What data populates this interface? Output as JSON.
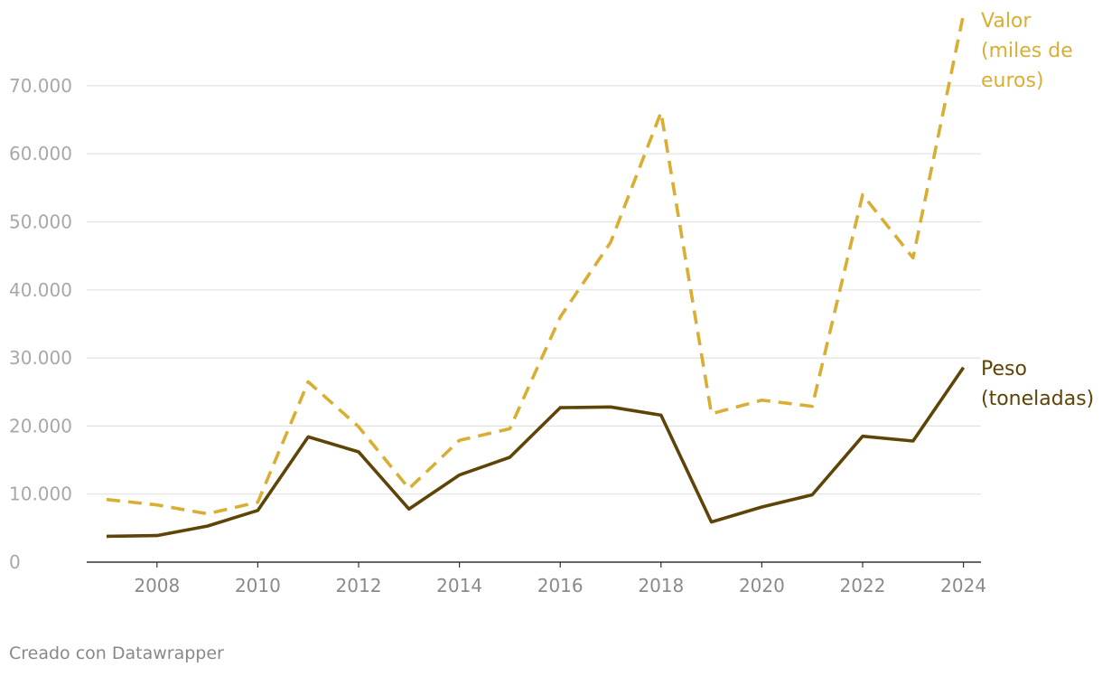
{
  "chart_data": {
    "type": "line",
    "x": [
      2007,
      2008,
      2009,
      2010,
      2011,
      2012,
      2013,
      2014,
      2015,
      2016,
      2017,
      2018,
      2019,
      2020,
      2021,
      2022,
      2023,
      2024
    ],
    "x_ticks": [
      2008,
      2010,
      2012,
      2014,
      2016,
      2018,
      2020,
      2022,
      2024
    ],
    "x_tick_labels": [
      "2008",
      "2010",
      "2012",
      "2014",
      "2016",
      "2018",
      "2020",
      "2022",
      "2024"
    ],
    "y_ticks": [
      0,
      10000,
      20000,
      30000,
      40000,
      50000,
      60000,
      70000
    ],
    "y_tick_labels": [
      "0",
      "10.000",
      "20.000",
      "30.000",
      "40.000",
      "50.000",
      "60.000",
      "70.000"
    ],
    "ylim": [
      0,
      80000
    ],
    "grid": true,
    "series": [
      {
        "name": "Valor (miles de euros)",
        "label_lines": [
          "Valor",
          "(miles de",
          "euros)"
        ],
        "color": "#d9ae35",
        "style": "dashed",
        "values": [
          9200,
          8400,
          7100,
          8800,
          26500,
          19900,
          10800,
          17900,
          19600,
          36000,
          47000,
          66100,
          21800,
          23800,
          22900,
          54000,
          44700,
          80500
        ]
      },
      {
        "name": "Peso (toneladas)",
        "label_lines": [
          "Peso",
          "(toneladas)"
        ],
        "color": "#5e4406",
        "style": "solid",
        "values": [
          3800,
          3900,
          5300,
          7600,
          18400,
          16200,
          7800,
          12800,
          15400,
          22700,
          22800,
          21600,
          5900,
          8100,
          9900,
          18500,
          17800,
          28600
        ]
      }
    ]
  },
  "footer": {
    "credit": "Creado con Datawrapper"
  }
}
